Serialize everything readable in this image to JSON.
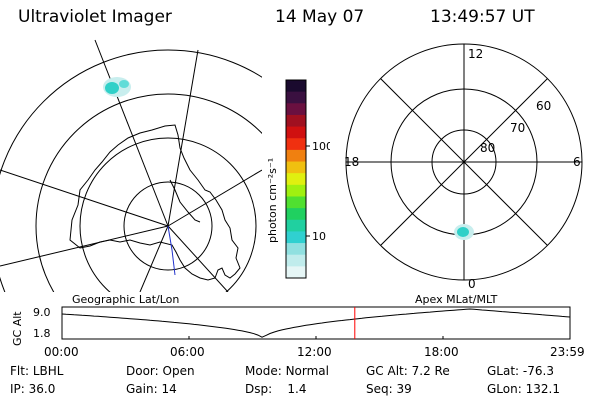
{
  "header": {
    "title": "Ultraviolet Imager",
    "date": "14 May 07",
    "time": "13:49:57 UT"
  },
  "colorbar": {
    "unit_label": "photon cm⁻²s⁻¹",
    "ticks": [
      "100",
      "10"
    ],
    "colors": [
      "#1a0a2e",
      "#3a1040",
      "#6a1040",
      "#a01020",
      "#d01010",
      "#f03010",
      "#f08010",
      "#f0c010",
      "#e0f010",
      "#a0f010",
      "#50e030",
      "#20d060",
      "#20d0a0",
      "#30d0d0",
      "#90e0e0",
      "#c0ecec",
      "#e6f6f6"
    ]
  },
  "left_map": {
    "label": "Geographic Lat/Lon",
    "aurora_color": "#30d0c8"
  },
  "right_map": {
    "label": "Apex MLat/MLT",
    "mlt_labels": {
      "top": "12",
      "left": "18",
      "right": "6",
      "bottom": "0"
    },
    "lat_labels": [
      "60",
      "70",
      "80"
    ]
  },
  "altitude_plot": {
    "ylabel": "GC Alt",
    "yticks": [
      "9.0",
      "1.8"
    ],
    "xticks": [
      "00:00",
      "06:00",
      "12:00",
      "18:00",
      "23:59"
    ],
    "marker_time": "13:49:57",
    "marker_color": "#ff0000"
  },
  "info": {
    "row1": [
      {
        "label": "Flt:",
        "value": "LBHL"
      },
      {
        "label": "Door:",
        "value": "Open"
      },
      {
        "label": "Mode:",
        "value": "Normal"
      },
      {
        "label": "GC Alt:",
        "value": "7.2 Re"
      },
      {
        "label": "GLat:",
        "value": "-76.3"
      }
    ],
    "row2": [
      {
        "label": "IP:",
        "value": "36.0"
      },
      {
        "label": "Gain:",
        "value": "14"
      },
      {
        "label": "Dsp:",
        "value": "1.4"
      },
      {
        "label": "Seq:",
        "value": "39"
      },
      {
        "label": "GLon:",
        "value": "132.1"
      }
    ]
  }
}
